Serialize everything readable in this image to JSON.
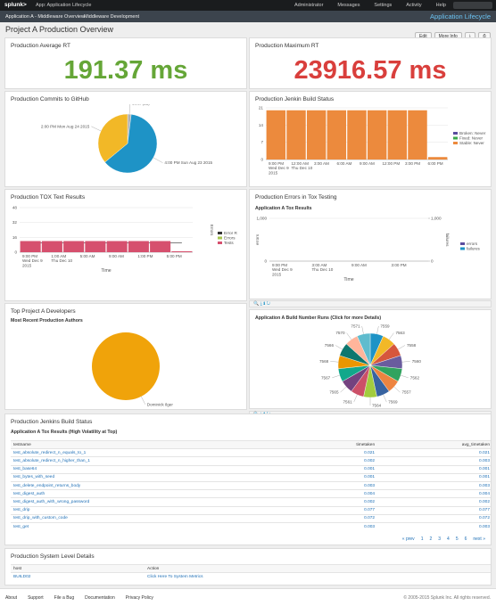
{
  "topbar": {
    "logo": "splunk>",
    "app": "App: Application Lifecycle",
    "menu": [
      "Administrator",
      "Messages",
      "Settings",
      "Activity",
      "Help"
    ]
  },
  "navbar": {
    "links": [
      "Application A - Middleware Overview",
      "Middleware Development"
    ],
    "app_title": "Application Lifecycle"
  },
  "header": {
    "title": "Project A Production Overview",
    "buttons": [
      "Edit",
      "More Info"
    ]
  },
  "avg_rt": {
    "title": "Production Average RT",
    "value": "191.37 ms",
    "color": "#65a637"
  },
  "max_rt": {
    "title": "Production Maximum RT",
    "value": "23916.57 ms",
    "color": "#d93f3c"
  },
  "commits": {
    "title": "Production Commits to GitHub",
    "type": "pie",
    "slices": [
      {
        "label": "other (21)",
        "value": 2,
        "color": "#b0b0b0"
      },
      {
        "label": "4:00 PM Sun Aug 23 2015",
        "value": 62,
        "color": "#1e93c6"
      },
      {
        "label": "2:00 PM Mon Aug 24 2015",
        "value": 36,
        "color": "#f2b827"
      }
    ]
  },
  "jenkins": {
    "title": "Production Jenkin Build Status",
    "type": "bar",
    "ylim": [
      0,
      21
    ],
    "yticks": [
      0,
      7,
      14,
      21
    ],
    "xlabels": [
      [
        "9:00 PM",
        "Wed Dec 9",
        "2015"
      ],
      [
        "12:00 AM",
        "Thu Dec 10"
      ],
      [
        "3:00 AM"
      ],
      [
        "6:00 AM"
      ],
      [
        "9:00 AM"
      ],
      [
        "12:00 PM"
      ],
      [
        "3:00 PM"
      ],
      [
        "6:00 PM"
      ]
    ],
    "series": [
      {
        "name": "Broken: Never",
        "color": "#5a4c9e"
      },
      {
        "name": "Fixed: Never",
        "color": "#3ba84a"
      },
      {
        "name": "Stable: Never",
        "color": "#ec8a3d",
        "values": [
          20,
          20,
          20,
          20,
          20,
          20,
          20,
          20,
          1
        ]
      }
    ]
  },
  "tox": {
    "title": "Production TOX Text Results",
    "type": "bar",
    "ylim": [
      0,
      48
    ],
    "yticks": [
      0,
      16,
      32,
      48
    ],
    "y2_title": "Errors",
    "x_title": "Time",
    "xlabels": [
      [
        "9:00 PM",
        "Wed Dec 9",
        "2015"
      ],
      [
        "1:00 AM",
        "Thu Dec 10"
      ],
      [
        "5:00 AM"
      ],
      [
        "9:00 AM"
      ],
      [
        "1:00 PM"
      ],
      [
        "5:00 PM"
      ]
    ],
    "series": [
      {
        "name": "Error R",
        "color": "#333333",
        "kind": "line",
        "values": [
          10,
          10,
          10,
          10,
          10,
          10,
          10,
          10
        ]
      },
      {
        "name": "Errors",
        "color": "#a6c64c"
      },
      {
        "name": "Tests",
        "color": "#d6506e",
        "kind": "bar",
        "values": [
          12,
          12,
          12,
          12,
          12,
          12,
          12,
          1
        ]
      }
    ]
  },
  "errors": {
    "title": "Production Errors in Tox Testing",
    "subtitle": "Application A Tox Results",
    "type": "line",
    "ylim": [
      0,
      1000
    ],
    "yticks": [
      0,
      {
        "value": 1000,
        "label": "1,000"
      }
    ],
    "y2lim": [
      0,
      1000
    ],
    "y2ticks": [
      0,
      {
        "value": 1000,
        "label": "1,000"
      }
    ],
    "y_title": "errors",
    "y2_title": "failures",
    "x_title": "Time",
    "xlabels": [
      [
        "9:00 PM",
        "Wed Dec 9",
        "2015"
      ],
      [
        "3:00 AM",
        "Thu Dec 10"
      ],
      [
        "9:00 AM"
      ],
      [
        "3:00 PM"
      ]
    ],
    "series": [
      {
        "name": "errors",
        "color": "#5a4c9e"
      },
      {
        "name": "failures",
        "color": "#1e93c6"
      }
    ]
  },
  "developers": {
    "title": "Top Project A Developers",
    "subtitle": "Most Recent Production Authors",
    "type": "pie",
    "slices": [
      {
        "label": "Dominick Ilger",
        "value": 100,
        "color": "#f0a30a"
      }
    ]
  },
  "builds": {
    "title": "Application A Build Number Runs (Click for more Details)",
    "type": "pie",
    "slices": [
      {
        "label": "7559",
        "value": 1,
        "color": "#1e93c6"
      },
      {
        "label": "7563",
        "value": 1,
        "color": "#f2b827"
      },
      {
        "label": "7558",
        "value": 1,
        "color": "#d6563c"
      },
      {
        "label": "7560",
        "value": 1,
        "color": "#6a5c9e"
      },
      {
        "label": "7562",
        "value": 1,
        "color": "#31a35f"
      },
      {
        "label": "7557",
        "value": 1,
        "color": "#ed8440"
      },
      {
        "label": "7569",
        "value": 1,
        "color": "#3863a0"
      },
      {
        "label": "7564",
        "value": 1,
        "color": "#a2cc3e"
      },
      {
        "label": "7561",
        "value": 1,
        "color": "#cc5068"
      },
      {
        "label": "7565",
        "value": 1,
        "color": "#73427f"
      },
      {
        "label": "7567",
        "value": 1,
        "color": "#11a88b"
      },
      {
        "label": "7568",
        "value": 1,
        "color": "#ea9600"
      },
      {
        "label": "7566",
        "value": 1,
        "color": "#0e776e"
      },
      {
        "label": "7570",
        "value": 1,
        "color": "#ffb59b"
      },
      {
        "label": "7571",
        "value": 1,
        "color": "#5fbcce"
      }
    ]
  },
  "table": {
    "title": "Production Jenkins Build Status",
    "subtitle": "Application A Tox Results (High Volatility at Top)",
    "columns": [
      "testname",
      "timetaken",
      "avg_timetaken"
    ],
    "rows": [
      [
        "test_absolute_redirect_n_equals_to_1",
        "0.021",
        "0.021"
      ],
      [
        "test_absolute_redirect_n_higher_than_1",
        "0.002",
        "0.003"
      ],
      [
        "test_base64",
        "0.001",
        "0.001"
      ],
      [
        "test_bytes_with_seed",
        "0.001",
        "0.001"
      ],
      [
        "test_delete_endpoint_returns_body",
        "0.003",
        "0.003"
      ],
      [
        "test_digest_auth",
        "0.004",
        "0.004"
      ],
      [
        "test_digest_auth_with_wrong_password",
        "0.002",
        "0.002"
      ],
      [
        "test_drip",
        "0.077",
        "0.077"
      ],
      [
        "test_drip_with_custom_code",
        "0.072",
        "0.072"
      ],
      [
        "test_get",
        "0.003",
        "0.003"
      ]
    ],
    "pager": [
      "« prev",
      "1",
      "2",
      "3",
      "4",
      "5",
      "6",
      "next »"
    ]
  },
  "system": {
    "title": "Production System Level Details",
    "columns": [
      "host",
      "Action"
    ],
    "rows": [
      [
        "BUILD02",
        "Click Here To System Metrics"
      ]
    ]
  },
  "footer": {
    "links": [
      "About",
      "Support",
      "File a Bug",
      "Documentation",
      "Privacy Policy"
    ],
    "copyright": "© 2005-2015 Splunk Inc. All rights reserved."
  }
}
